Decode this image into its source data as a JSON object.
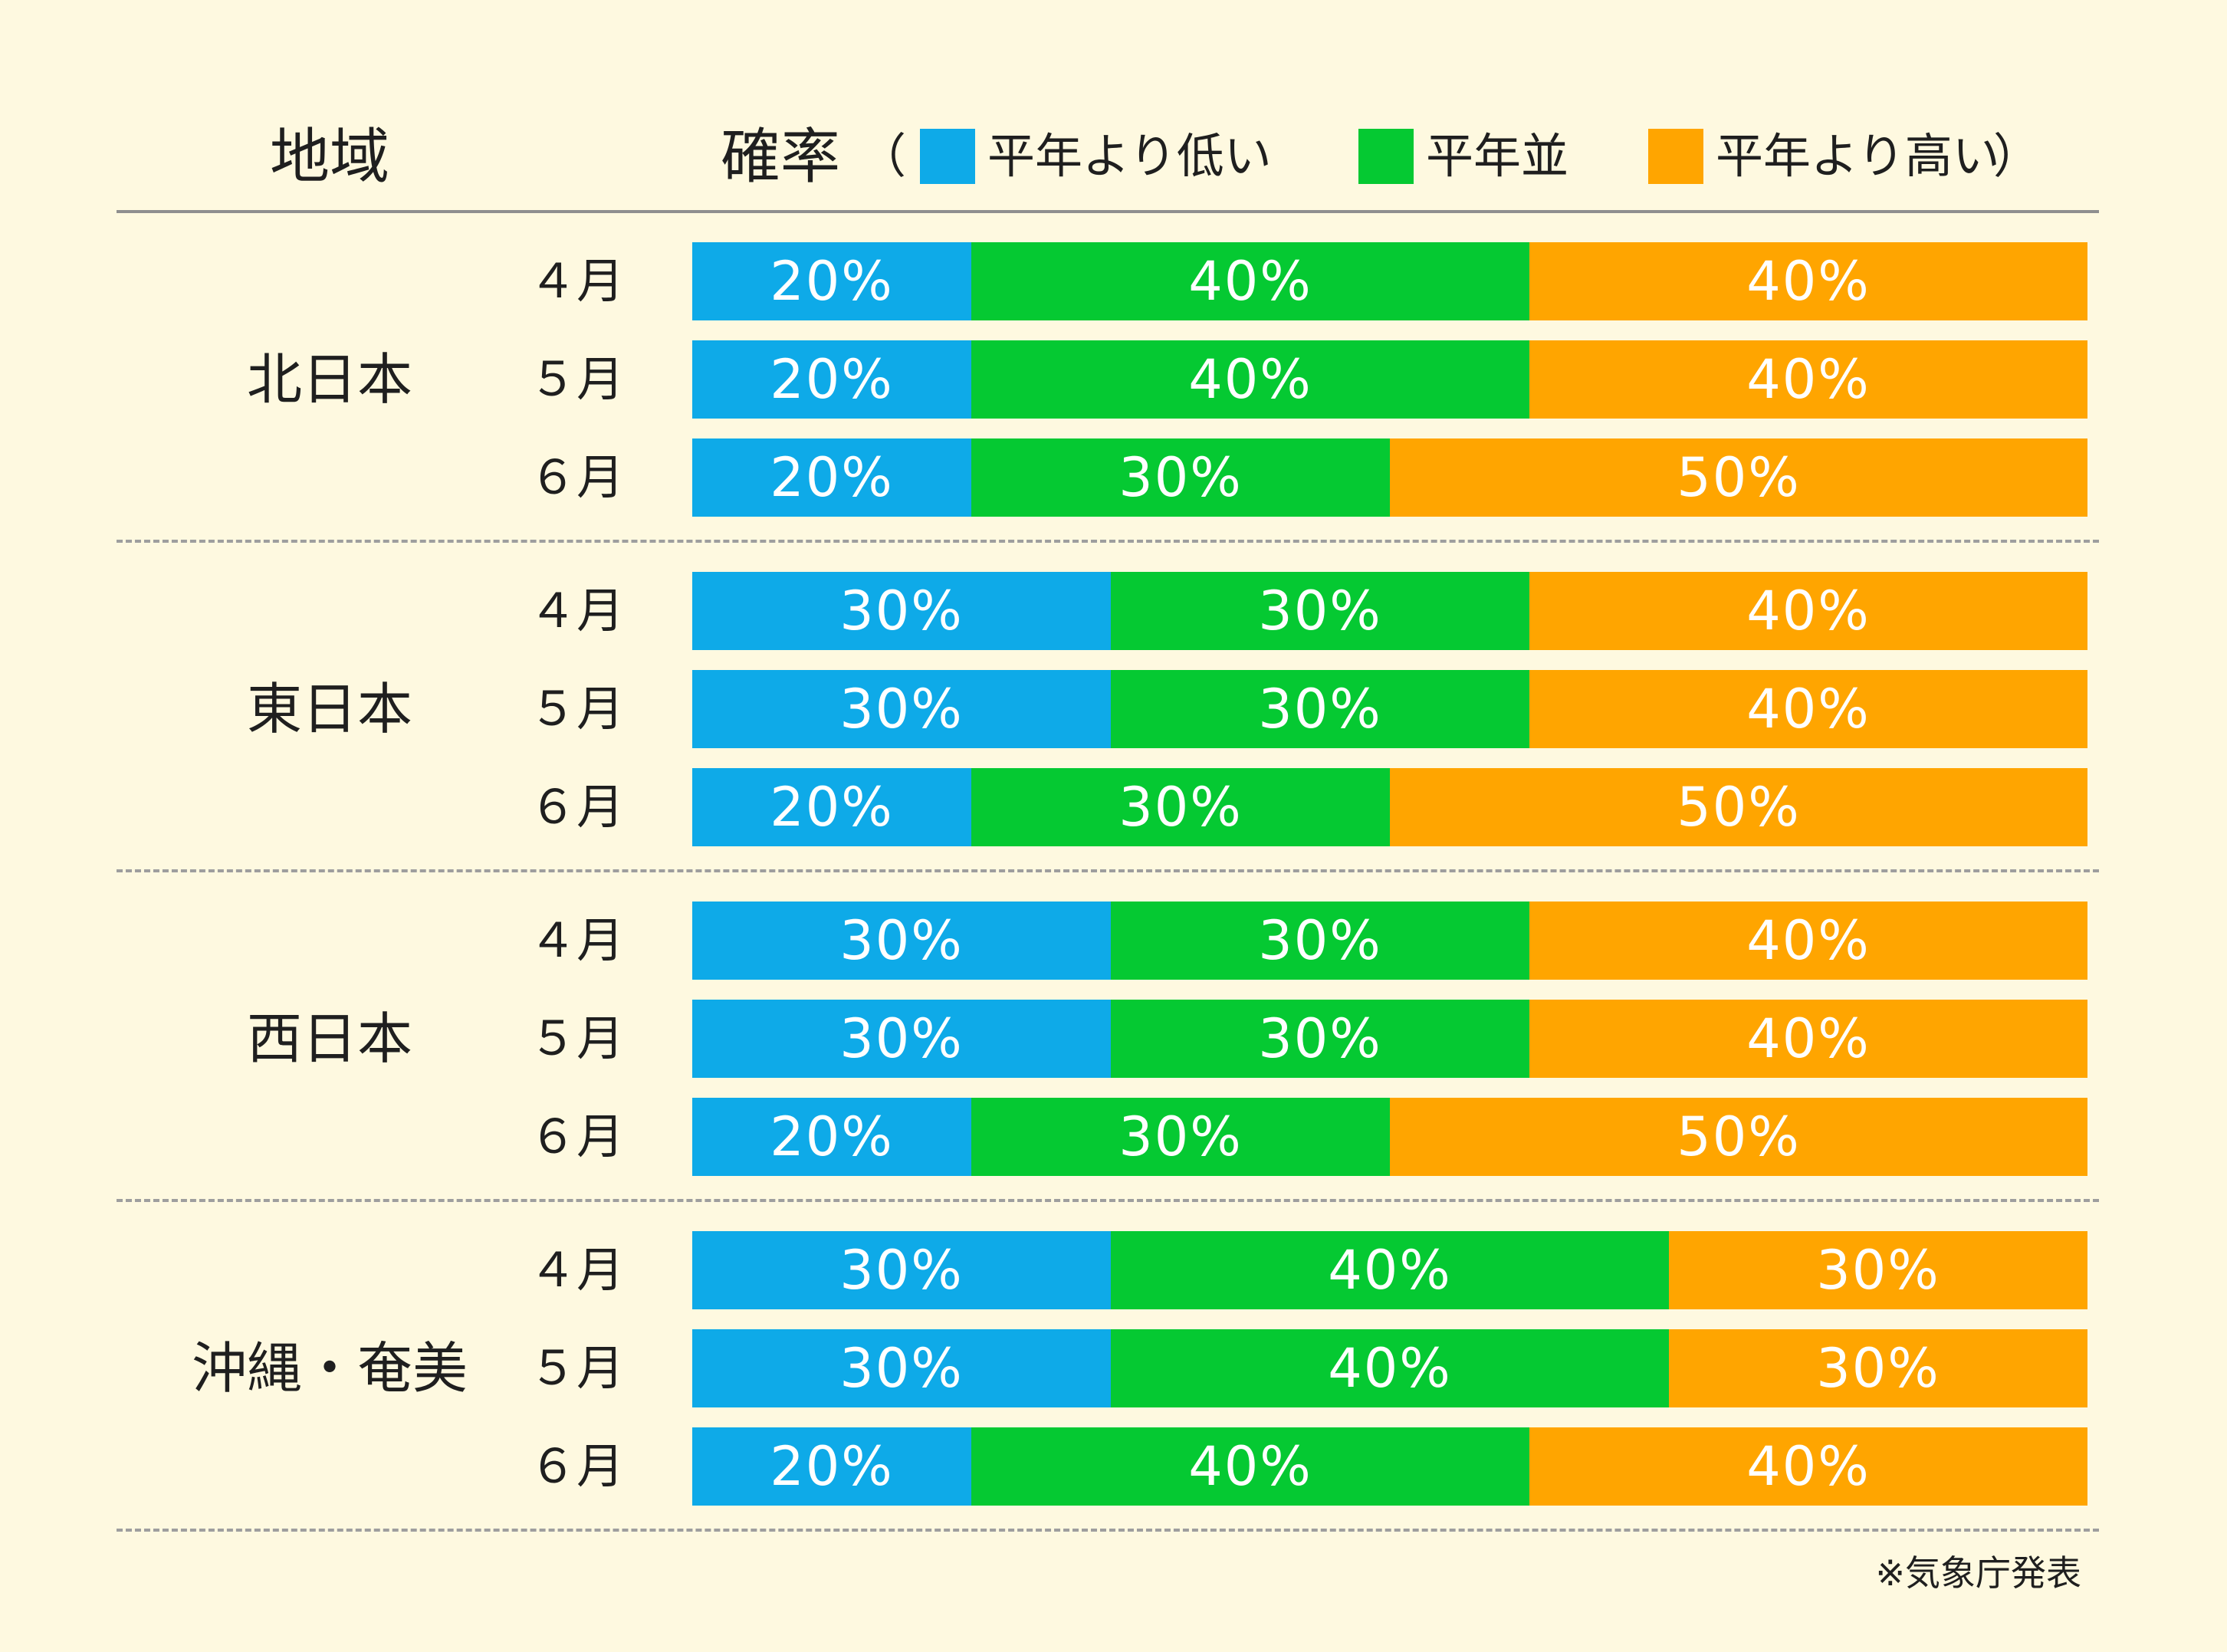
{
  "header": {
    "region": "地域",
    "probability": "確率",
    "open_paren": "（",
    "close_paren": "）"
  },
  "legend": [
    {
      "label": "平年より低い",
      "color": "#0eaae8"
    },
    {
      "label": "平年並",
      "color": "#05c932"
    },
    {
      "label": "平年より高い",
      "color": "#ffa500"
    }
  ],
  "footnote": "※気象庁発表",
  "regions": [
    {
      "name": "北日本",
      "rows": [
        {
          "month": "４月",
          "values": [
            20,
            40,
            40
          ],
          "labels": [
            "20%",
            "40%",
            "40%"
          ]
        },
        {
          "month": "５月",
          "values": [
            20,
            40,
            40
          ],
          "labels": [
            "20%",
            "40%",
            "40%"
          ]
        },
        {
          "month": "６月",
          "values": [
            20,
            30,
            50
          ],
          "labels": [
            "20%",
            "30%",
            "50%"
          ]
        }
      ]
    },
    {
      "name": "東日本",
      "rows": [
        {
          "month": "４月",
          "values": [
            30,
            30,
            40
          ],
          "labels": [
            "30%",
            "30%",
            "40%"
          ]
        },
        {
          "month": "５月",
          "values": [
            30,
            30,
            40
          ],
          "labels": [
            "30%",
            "30%",
            "40%"
          ]
        },
        {
          "month": "６月",
          "values": [
            20,
            30,
            50
          ],
          "labels": [
            "20%",
            "30%",
            "50%"
          ]
        }
      ]
    },
    {
      "name": "西日本",
      "rows": [
        {
          "month": "４月",
          "values": [
            30,
            30,
            40
          ],
          "labels": [
            "30%",
            "30%",
            "40%"
          ]
        },
        {
          "month": "５月",
          "values": [
            30,
            30,
            40
          ],
          "labels": [
            "30%",
            "30%",
            "40%"
          ]
        },
        {
          "month": "６月",
          "values": [
            20,
            30,
            50
          ],
          "labels": [
            "20%",
            "30%",
            "50%"
          ]
        }
      ]
    },
    {
      "name": "沖縄・奄美",
      "rows": [
        {
          "month": "４月",
          "values": [
            30,
            40,
            30
          ],
          "labels": [
            "30%",
            "40%",
            "30%"
          ]
        },
        {
          "month": "５月",
          "values": [
            30,
            40,
            30
          ],
          "labels": [
            "30%",
            "40%",
            "30%"
          ]
        },
        {
          "month": "６月",
          "values": [
            20,
            40,
            40
          ],
          "labels": [
            "20%",
            "40%",
            "40%"
          ]
        }
      ]
    }
  ],
  "chart_data": {
    "type": "bar",
    "orientation": "horizontal",
    "stacked": true,
    "unit": "%",
    "xlim": [
      0,
      100
    ],
    "series": [
      {
        "name": "平年より低い",
        "color": "#0eaae8"
      },
      {
        "name": "平年並",
        "color": "#05c932"
      },
      {
        "name": "平年より高い",
        "color": "#ffa500"
      }
    ],
    "groups": [
      {
        "name": "北日本",
        "categories": [
          "４月",
          "５月",
          "６月"
        ],
        "values": [
          [
            20,
            40,
            40
          ],
          [
            20,
            40,
            40
          ],
          [
            20,
            30,
            50
          ]
        ]
      },
      {
        "name": "東日本",
        "categories": [
          "４月",
          "５月",
          "６月"
        ],
        "values": [
          [
            30,
            30,
            40
          ],
          [
            30,
            30,
            40
          ],
          [
            20,
            30,
            50
          ]
        ]
      },
      {
        "name": "西日本",
        "categories": [
          "４月",
          "５月",
          "６月"
        ],
        "values": [
          [
            30,
            30,
            40
          ],
          [
            30,
            30,
            40
          ],
          [
            20,
            30,
            50
          ]
        ]
      },
      {
        "name": "沖縄・奄美",
        "categories": [
          "４月",
          "５月",
          "６月"
        ],
        "values": [
          [
            30,
            40,
            30
          ],
          [
            30,
            40,
            30
          ],
          [
            20,
            40,
            40
          ]
        ]
      }
    ],
    "legend_position": "top"
  }
}
